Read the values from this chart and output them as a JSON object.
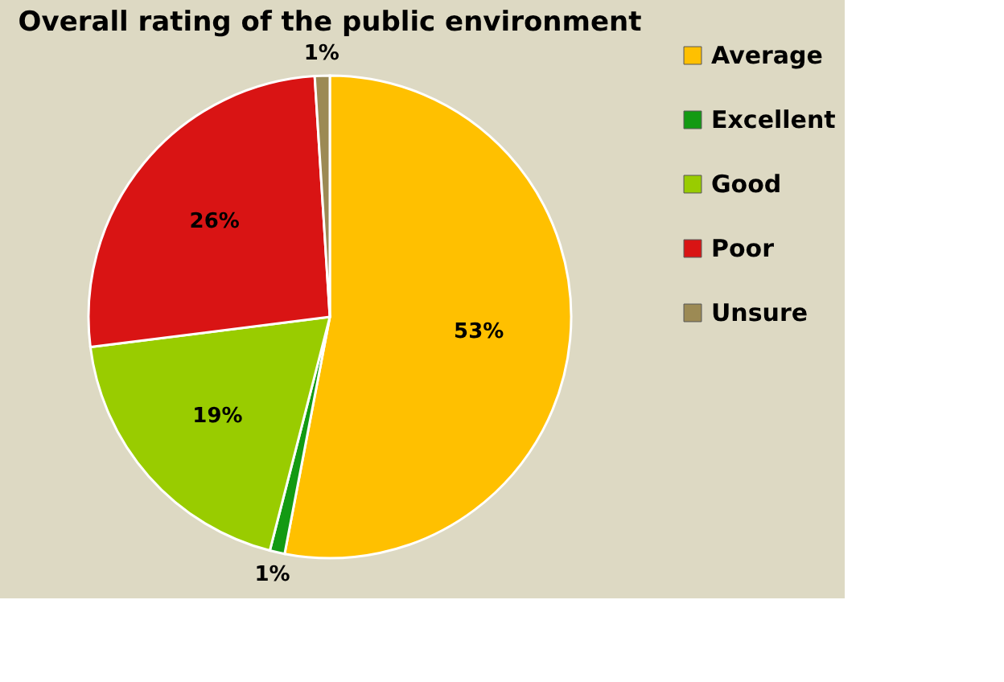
{
  "chart_data": {
    "type": "pie",
    "title": "Overall rating of the public environment",
    "categories": [
      "Average",
      "Excellent",
      "Good",
      "Poor",
      "Unsure"
    ],
    "values": [
      53,
      1,
      19,
      26,
      1
    ],
    "colors": [
      "#ffc000",
      "#139a13",
      "#99cc00",
      "#d91414",
      "#9c8a54"
    ],
    "value_labels": [
      "53%",
      "1%",
      "19%",
      "26%",
      "1%"
    ],
    "legend": "right"
  }
}
